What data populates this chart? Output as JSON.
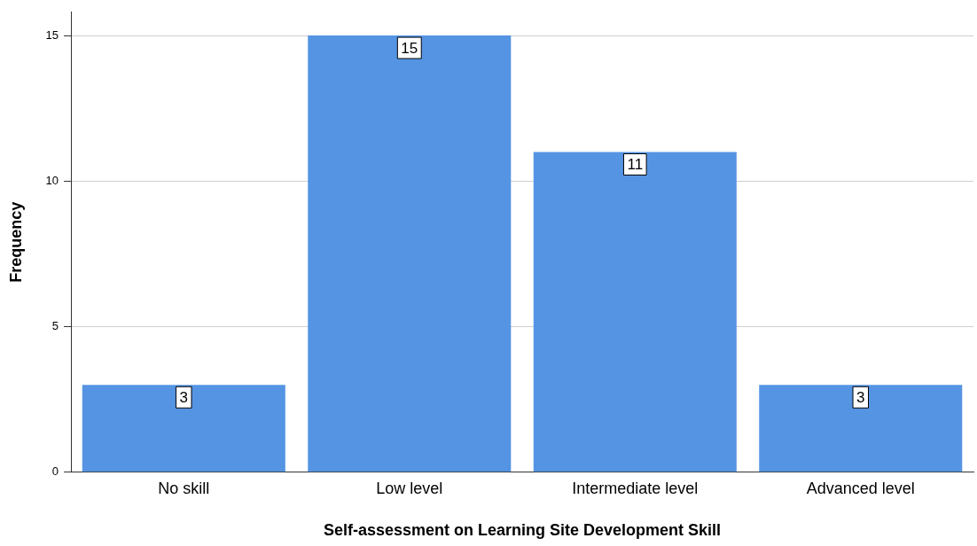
{
  "chart_data": {
    "type": "bar",
    "xlabel": "Self-assessment on Learning Site Development Skill",
    "ylabel": "Frequency",
    "categories": [
      "No skill",
      "Low level",
      "Intermediate level",
      "Advanced level"
    ],
    "values": [
      3,
      15,
      11,
      3
    ],
    "color": "#5594e3",
    "ylim": [
      0,
      15.8
    ],
    "yticks": [
      0,
      5,
      10,
      15
    ],
    "grid": "y",
    "data_labels": true,
    "legend": false
  }
}
